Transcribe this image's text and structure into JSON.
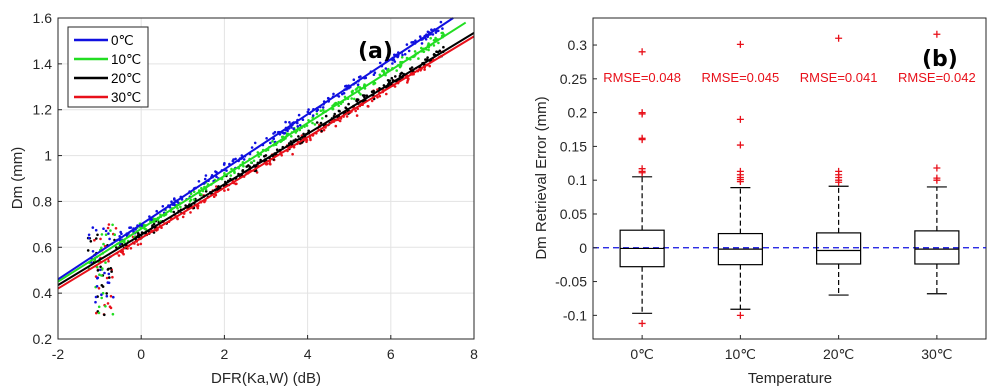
{
  "chart_data": [
    {
      "type": "scatter",
      "panel_label": "(a)",
      "xlabel": "DFR(Ka,W) (dB)",
      "ylabel": "Dm (mm)",
      "xlim": [
        -2,
        8
      ],
      "ylim": [
        0.2,
        1.6
      ],
      "xticks": [
        "-2",
        "0",
        "2",
        "4",
        "6",
        "8"
      ],
      "yticks": [
        "0.2",
        "0.4",
        "0.6",
        "0.8",
        "1",
        "1.2",
        "1.4",
        "1.6"
      ],
      "grid": true,
      "legend_position": "top-left",
      "series": [
        {
          "name": "0℃",
          "color": "#1010e0",
          "fit": {
            "x": [
              -2,
              7.5
            ],
            "y": [
              0.46,
              1.6
            ]
          }
        },
        {
          "name": "10℃",
          "color": "#22dd22",
          "fit": {
            "x": [
              -2,
              7.8
            ],
            "y": [
              0.45,
              1.58
            ]
          }
        },
        {
          "name": "20℃",
          "color": "#000000",
          "fit": {
            "x": [
              -2,
              8
            ],
            "y": [
              0.435,
              1.535
            ]
          }
        },
        {
          "name": "30℃",
          "color": "#e8101a",
          "fit": {
            "x": [
              -2,
              8
            ],
            "y": [
              0.42,
              1.52
            ]
          }
        }
      ]
    },
    {
      "type": "box",
      "panel_label": "(b)",
      "xlabel": "Temperature",
      "ylabel": "Dm Retrieval Error (mm)",
      "ylim": [
        -0.135,
        0.34
      ],
      "yticks": [
        "-0.1",
        "-0.05",
        "0",
        "0.05",
        "0.1",
        "0.15",
        "0.2",
        "0.25",
        "0.3"
      ],
      "categories": [
        "0℃",
        "10℃",
        "20℃",
        "30℃"
      ],
      "annotations": [
        "RMSE=0.048",
        "RMSE=0.045",
        "RMSE=0.041",
        "RMSE=0.042"
      ],
      "reference_line": 0,
      "boxes": [
        {
          "q1": -0.028,
          "median": -0.001,
          "q3": 0.026,
          "whisker_low": -0.097,
          "whisker_high": 0.105,
          "outliers": [
            0.29,
            0.2,
            0.198,
            0.162,
            0.16,
            0.117,
            0.113,
            0.111,
            -0.112
          ]
        },
        {
          "q1": -0.025,
          "median": -0.002,
          "q3": 0.021,
          "whisker_low": -0.091,
          "whisker_high": 0.089,
          "outliers": [
            0.301,
            0.19,
            0.152,
            0.113,
            0.108,
            0.104,
            0.101,
            0.098,
            -0.1
          ]
        },
        {
          "q1": -0.024,
          "median": -0.004,
          "q3": 0.022,
          "whisker_low": -0.07,
          "whisker_high": 0.091,
          "outliers": [
            0.31,
            0.113,
            0.108,
            0.104,
            0.1,
            0.097
          ]
        },
        {
          "q1": -0.024,
          "median": -0.002,
          "q3": 0.025,
          "whisker_low": -0.068,
          "whisker_high": 0.09,
          "outliers": [
            0.316,
            0.118,
            0.103,
            0.1
          ]
        }
      ]
    }
  ]
}
